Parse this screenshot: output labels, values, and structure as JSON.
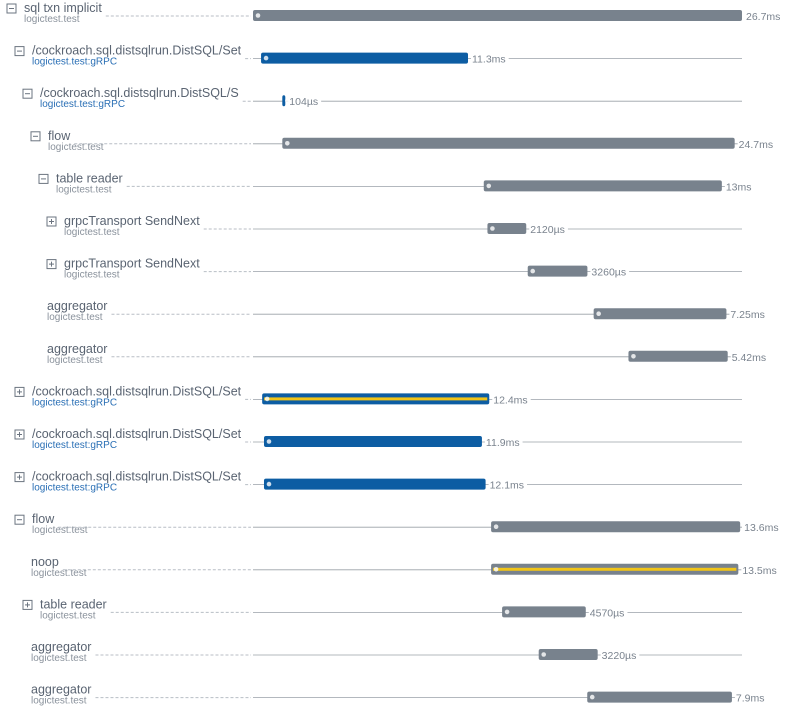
{
  "timeline": {
    "xlim": [
      0,
      26.7
    ],
    "spans": [
      {
        "name": "sql txn implicit",
        "service": "logictest.test",
        "depth": 0,
        "expanded": true,
        "start": 0,
        "duration": {
          "value": 26.7,
          "label": "26.7ms"
        },
        "color": "#78828d"
      },
      {
        "name": "/cockroach.sql.distsqlrun.DistSQL/Set",
        "service": "logictest.test:gRPC",
        "depth": 1,
        "expanded": true,
        "start": 0.44,
        "duration": {
          "value": 11.3,
          "label": "11.3ms"
        },
        "color": "#0d5da3"
      },
      {
        "name": "/cockroach.sql.distsqlrun.DistSQL/S",
        "service": "logictest.test:gRPC",
        "depth": 2,
        "expanded": true,
        "start": 1.6,
        "duration": {
          "value": 0.104,
          "label": "104µs"
        },
        "color": "#0d5da3"
      },
      {
        "name": "flow",
        "service": "logictest.test",
        "depth": 3,
        "expanded": true,
        "start": 1.6,
        "duration": {
          "value": 24.7,
          "label": "24.7ms"
        },
        "color": "#78828d"
      },
      {
        "name": "table reader",
        "service": "logictest.test",
        "depth": 4,
        "expanded": true,
        "start": 12.6,
        "duration": {
          "value": 13,
          "label": "13ms"
        },
        "color": "#78828d"
      },
      {
        "name": "grpcTransport SendNext",
        "service": "logictest.test",
        "depth": 5,
        "expanded": false,
        "start": 12.8,
        "duration": {
          "value": 2.12,
          "label": "2120µs"
        },
        "color": "#78828d"
      },
      {
        "name": "grpcTransport SendNext",
        "service": "logictest.test",
        "depth": 5,
        "expanded": false,
        "start": 15.0,
        "duration": {
          "value": 3.26,
          "label": "3260µs"
        },
        "color": "#78828d"
      },
      {
        "name": "aggregator",
        "service": "logictest.test",
        "depth": 4,
        "expanded": null,
        "start": 18.6,
        "duration": {
          "value": 7.25,
          "label": "7.25ms"
        },
        "color": "#78828d"
      },
      {
        "name": "aggregator",
        "service": "logictest.test",
        "depth": 4,
        "expanded": null,
        "start": 20.5,
        "duration": {
          "value": 5.42,
          "label": "5.42ms"
        },
        "color": "#78828d"
      },
      {
        "name": "/cockroach.sql.distsqlrun.DistSQL/Set",
        "service": "logictest.test:gRPC",
        "depth": 1,
        "expanded": false,
        "start": 0.5,
        "duration": {
          "value": 12.4,
          "label": "12.4ms"
        },
        "color": "#0d5da3",
        "highlight": "#f0c419"
      },
      {
        "name": "/cockroach.sql.distsqlrun.DistSQL/Set",
        "service": "logictest.test:gRPC",
        "depth": 1,
        "expanded": false,
        "start": 0.6,
        "duration": {
          "value": 11.9,
          "label": "11.9ms"
        },
        "color": "#0d5da3"
      },
      {
        "name": "/cockroach.sql.distsqlrun.DistSQL/Set",
        "service": "logictest.test:gRPC",
        "depth": 1,
        "expanded": false,
        "start": 0.6,
        "duration": {
          "value": 12.1,
          "label": "12.1ms"
        },
        "color": "#0d5da3"
      },
      {
        "name": "flow",
        "service": "logictest.test",
        "depth": 1,
        "expanded": true,
        "start": 13.0,
        "duration": {
          "value": 13.6,
          "label": "13.6ms"
        },
        "color": "#78828d"
      },
      {
        "name": "noop",
        "service": "logictest.test",
        "depth": 2,
        "expanded": null,
        "start": 13.0,
        "duration": {
          "value": 13.5,
          "label": "13.5ms"
        },
        "color": "#78828d",
        "highlight": "#f0c419"
      },
      {
        "name": "table reader",
        "service": "logictest.test",
        "depth": 2,
        "expanded": false,
        "start": 13.6,
        "duration": {
          "value": 4.57,
          "label": "4570µs"
        },
        "color": "#78828d"
      },
      {
        "name": "aggregator",
        "service": "logictest.test",
        "depth": 2,
        "expanded": null,
        "start": 15.6,
        "duration": {
          "value": 3.22,
          "label": "3220µs"
        },
        "color": "#78828d"
      },
      {
        "name": "aggregator",
        "service": "logictest.test",
        "depth": 2,
        "expanded": null,
        "start": 18.25,
        "duration": {
          "value": 7.9,
          "label": "7.9ms"
        },
        "color": "#78828d"
      }
    ]
  }
}
